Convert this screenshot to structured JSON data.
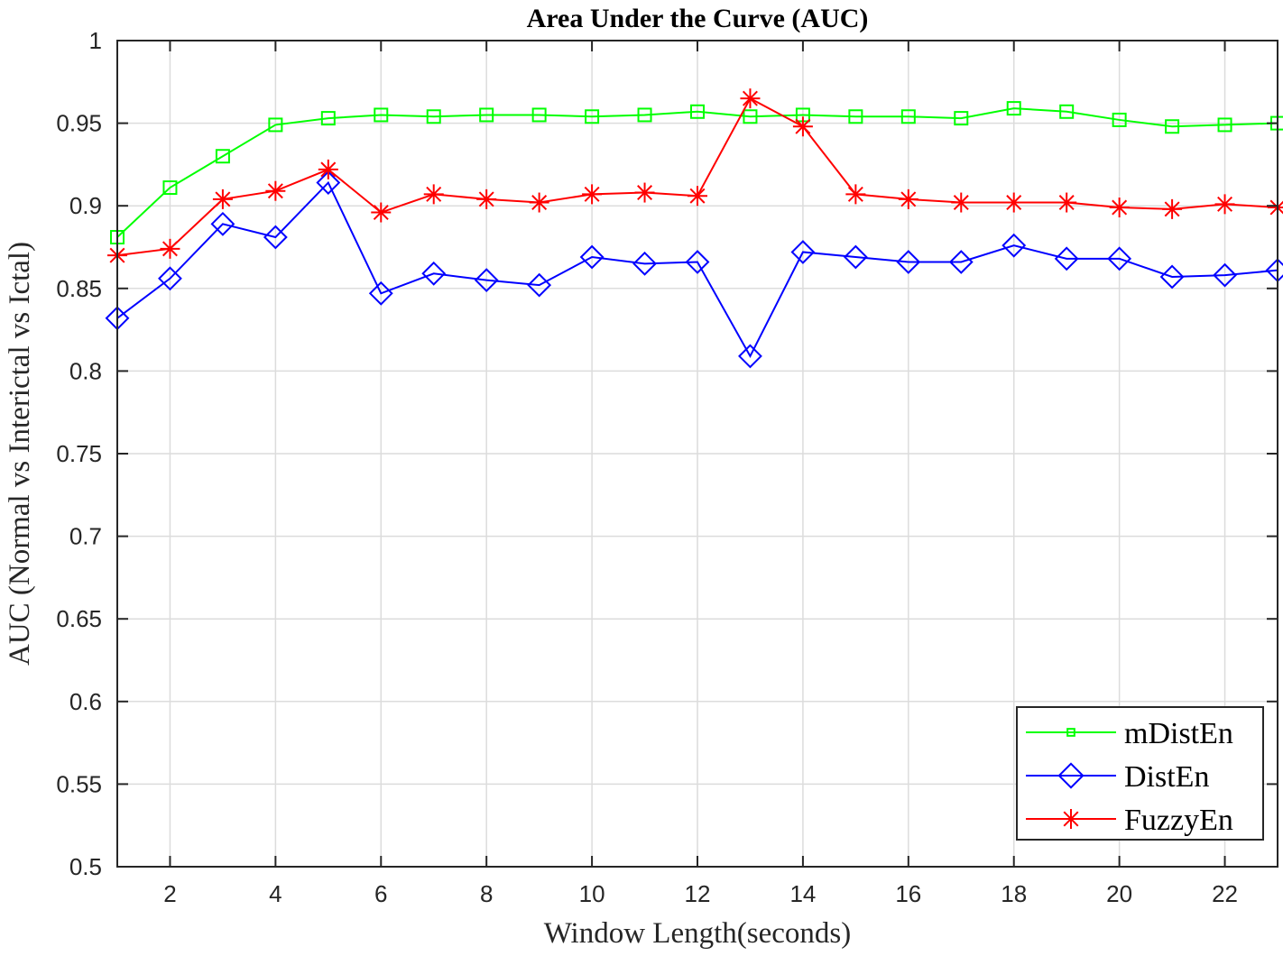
{
  "chart_data": {
    "type": "line",
    "title": "Area Under the Curve (AUC)",
    "xlabel": "Window Length(seconds)",
    "ylabel": "AUC (Normal vs Interictal vs Ictal)",
    "xlim": [
      1,
      23
    ],
    "ylim": [
      0.5,
      1
    ],
    "xticks": [
      2,
      4,
      6,
      8,
      10,
      12,
      14,
      16,
      18,
      20,
      22
    ],
    "yticks": [
      0.5,
      0.55,
      0.6,
      0.65,
      0.7,
      0.75,
      0.8,
      0.85,
      0.9,
      0.95,
      1
    ],
    "ytick_labels": [
      "0.5",
      "0.55",
      "0.6",
      "0.65",
      "0.7",
      "0.75",
      "0.8",
      "0.85",
      "0.9",
      "0.95",
      "1"
    ],
    "grid": true,
    "legend_position": "lower right",
    "x": [
      1,
      2,
      3,
      4,
      5,
      6,
      7,
      8,
      9,
      10,
      11,
      12,
      13,
      14,
      15,
      16,
      17,
      18,
      19,
      20,
      21,
      22,
      23
    ],
    "series": [
      {
        "name": "mDistEn",
        "color": "#00ff00",
        "marker": "square",
        "values": [
          0.881,
          0.911,
          0.93,
          0.949,
          0.953,
          0.955,
          0.954,
          0.955,
          0.955,
          0.954,
          0.955,
          0.957,
          0.954,
          0.955,
          0.954,
          0.954,
          0.953,
          0.959,
          0.957,
          0.952,
          0.948,
          0.949,
          0.95
        ]
      },
      {
        "name": "DistEn",
        "color": "#0000ff",
        "marker": "diamond",
        "values": [
          0.832,
          0.856,
          0.889,
          0.881,
          0.914,
          0.847,
          0.859,
          0.855,
          0.852,
          0.869,
          0.865,
          0.866,
          0.809,
          0.872,
          0.869,
          0.866,
          0.866,
          0.876,
          0.868,
          0.868,
          0.857,
          0.858,
          0.861
        ]
      },
      {
        "name": "FuzzyEn",
        "color": "#ff0000",
        "marker": "asterisk",
        "values": [
          0.87,
          0.874,
          0.904,
          0.909,
          0.922,
          0.896,
          0.907,
          0.904,
          0.902,
          0.907,
          0.908,
          0.906,
          0.965,
          0.948,
          0.907,
          0.904,
          0.902,
          0.902,
          0.902,
          0.899,
          0.898,
          0.901,
          0.899
        ]
      }
    ]
  }
}
